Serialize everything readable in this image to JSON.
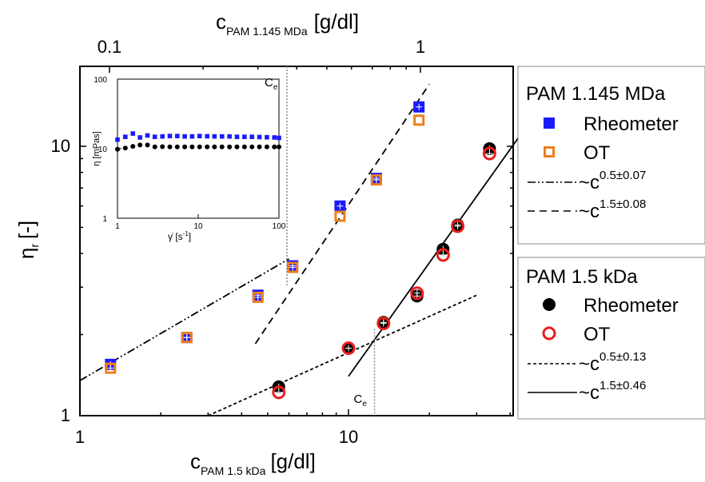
{
  "chart_data": {
    "type": "scatter",
    "log_scale": true,
    "x_axis_bottom": {
      "label_main": "c",
      "label_sub": "PAM 1.5 kDa",
      "label_unit": "[g/dl]",
      "range": [
        1,
        40
      ],
      "ticks": [
        1,
        10
      ],
      "tick_labels": [
        "1",
        "10"
      ]
    },
    "x_axis_top": {
      "label_main": "c",
      "label_sub": "PAM 1.145 MDa",
      "label_unit": "[g/dl]",
      "ticks": [
        0.1,
        1
      ],
      "tick_labels": [
        "0.1",
        "1"
      ]
    },
    "y_axis": {
      "label_main": "η",
      "label_sub": "r",
      "label_unit": "[-]",
      "range": [
        1,
        20
      ],
      "ticks": [
        1,
        10
      ],
      "tick_labels": [
        "1",
        "10"
      ]
    },
    "series": [
      {
        "name": "Rheometer",
        "group": "PAM 1.145 MDa",
        "marker": "square",
        "color": "#1a1aff",
        "x": [
          1.3,
          2.5,
          4.6,
          6.2,
          9.3,
          12.7,
          18.3
        ],
        "y": [
          1.55,
          1.95,
          2.8,
          3.6,
          6.0,
          7.6,
          14.0
        ]
      },
      {
        "name": "OT",
        "group": "PAM 1.145 MDa",
        "marker": "open-square",
        "color": "#ee7f1c",
        "x": [
          1.3,
          2.5,
          4.6,
          6.2,
          9.3,
          12.7,
          18.3
        ],
        "y": [
          1.5,
          1.95,
          2.75,
          3.55,
          5.5,
          7.5,
          12.5
        ]
      },
      {
        "name": "Rheometer",
        "group": "PAM 1.5 kDa",
        "marker": "circle",
        "color": "#000000",
        "x": [
          5.5,
          10.0,
          13.5,
          18.0,
          22.5,
          25.5,
          33.5
        ],
        "y": [
          1.28,
          1.78,
          2.22,
          2.78,
          4.15,
          5.1,
          9.8
        ]
      },
      {
        "name": "OT",
        "group": "PAM 1.5 kDa",
        "marker": "open-circle",
        "color": "#ee1c1c",
        "x": [
          5.5,
          10.0,
          13.5,
          18.0,
          22.5,
          25.5,
          33.5
        ],
        "y": [
          1.22,
          1.78,
          2.2,
          2.85,
          3.95,
          5.05,
          9.4
        ]
      }
    ],
    "fit_lines": [
      {
        "label": "~c",
        "exp": "0.5±0.07",
        "group": "PAM 1.145 MDa",
        "style": "dashdotdot",
        "x": [
          1,
          6.0
        ],
        "y": [
          1.35,
          3.82
        ]
      },
      {
        "label": "~c",
        "exp": "1.5±0.08",
        "group": "PAM 1.145 MDa",
        "style": "dashed",
        "x": [
          4.5,
          20.0
        ],
        "y": [
          1.85,
          17.0
        ]
      },
      {
        "label": "~c",
        "exp": "0.5±0.13",
        "group": "PAM 1.5 kDa",
        "style": "dotted",
        "x": [
          3.0,
          30.0
        ],
        "y": [
          1.0,
          2.8
        ]
      },
      {
        "label": "~c",
        "exp": "1.5±0.46",
        "group": "PAM 1.5 kDa",
        "style": "solid",
        "x": [
          10.0,
          45.0
        ],
        "y": [
          1.4,
          11.5
        ]
      }
    ],
    "ce_markers": [
      {
        "label": "C",
        "sub": "e",
        "x": 5.9,
        "position": "top"
      },
      {
        "label": "C",
        "sub": "e",
        "x": 12.5,
        "position": "bottom"
      }
    ],
    "inset": {
      "type": "scatter",
      "x_label": "γ̇ [s",
      "x_label_exp": "-1",
      "x_label_end": "]",
      "y_label": "η [mPas]",
      "x_range": [
        1,
        100
      ],
      "y_range": [
        1,
        100
      ],
      "x_tick_labels": [
        "1",
        "10",
        "100"
      ],
      "y_tick_labels": [
        "1",
        "10",
        "100"
      ],
      "series": [
        {
          "color": "#1a1aff",
          "marker": "square",
          "x": [
            1,
            1.25,
            1.55,
            1.9,
            2.35,
            2.9,
            3.6,
            4.45,
            5.5,
            6.8,
            8.4,
            10.4,
            12.9,
            15.9,
            19.7,
            24.4,
            30.2,
            37.4,
            46.3,
            57.3,
            70.9,
            87.7,
            100
          ],
          "y": [
            13.5,
            14.8,
            16.5,
            14.5,
            15.5,
            14.8,
            15.0,
            15.2,
            15.2,
            15.0,
            15.0,
            15.2,
            15.1,
            15.0,
            15.0,
            15.0,
            14.8,
            14.8,
            14.8,
            14.7,
            14.6,
            14.5,
            14.3
          ]
        },
        {
          "color": "#000000",
          "marker": "circle",
          "x": [
            1,
            1.25,
            1.55,
            1.9,
            2.35,
            2.9,
            3.6,
            4.45,
            5.5,
            6.8,
            8.4,
            10.4,
            12.9,
            15.9,
            19.7,
            24.4,
            30.2,
            37.4,
            46.3,
            57.3,
            70.9,
            87.7,
            100
          ],
          "y": [
            9.8,
            10.2,
            10.8,
            11.3,
            11.3,
            10.6,
            10.7,
            10.6,
            10.6,
            10.6,
            10.6,
            10.6,
            10.6,
            10.6,
            10.6,
            10.6,
            10.6,
            10.6,
            10.6,
            10.6,
            10.6,
            10.6,
            10.6
          ]
        }
      ]
    }
  },
  "legend_top": {
    "title": "PAM 1.145 MDa",
    "entries": [
      {
        "label": "Rheometer",
        "marker": "square",
        "color": "#1a1aff"
      },
      {
        "label": "OT",
        "marker": "open-square",
        "color": "#ee7f1c"
      },
      {
        "label": "~c",
        "exp": "0.5±0.07",
        "line": "dashdotdot"
      },
      {
        "label": "~c",
        "exp": "1.5±0.08",
        "line": "dashed"
      }
    ]
  },
  "legend_bottom": {
    "title": "PAM 1.5 kDa",
    "entries": [
      {
        "label": "Rheometer",
        "marker": "circle",
        "color": "#000000"
      },
      {
        "label": "OT",
        "marker": "open-circle",
        "color": "#ee1c1c"
      },
      {
        "label": "~c",
        "exp": "0.5±0.13",
        "line": "dotted"
      },
      {
        "label": "~c",
        "exp": "1.5±0.46",
        "line": "solid"
      }
    ]
  }
}
